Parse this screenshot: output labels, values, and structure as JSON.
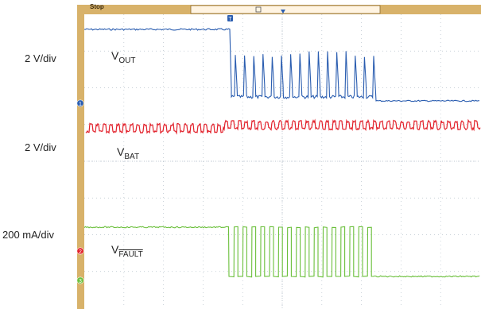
{
  "topbar": {
    "status": "Stop"
  },
  "markers": {
    "trigger": "T",
    "ch1": "1",
    "ch2": "2",
    "ch3": "3"
  },
  "labels": [
    {
      "scale": "2 V/div"
    },
    {
      "scale": "2 V/div"
    },
    {
      "scale": "200 mA/div"
    }
  ],
  "signals": {
    "vout": {
      "pre": "V",
      "sub": "OUT",
      "bar": false
    },
    "vbat": {
      "pre": "V",
      "sub": "BAT",
      "bar": false
    },
    "vfault": {
      "pre": "V",
      "sub": "FAULT",
      "bar": true
    }
  },
  "colors": {
    "vout": "#2a5db0",
    "vbat": "#e2202a",
    "vfault": "#6abf3a",
    "frame": "#d8b26a",
    "grid": "#b8c2cc"
  },
  "chart_data": {
    "type": "line",
    "title": "",
    "grid": true,
    "divisions": {
      "x": 10,
      "y": 8
    },
    "series": [
      {
        "key": "vout",
        "description": "steady high, then burst of spikes, then low"
      },
      {
        "key": "vbat",
        "description": "square-wave ripple"
      },
      {
        "key": "vfault",
        "description": "high, then pulse train, then low"
      }
    ]
  }
}
